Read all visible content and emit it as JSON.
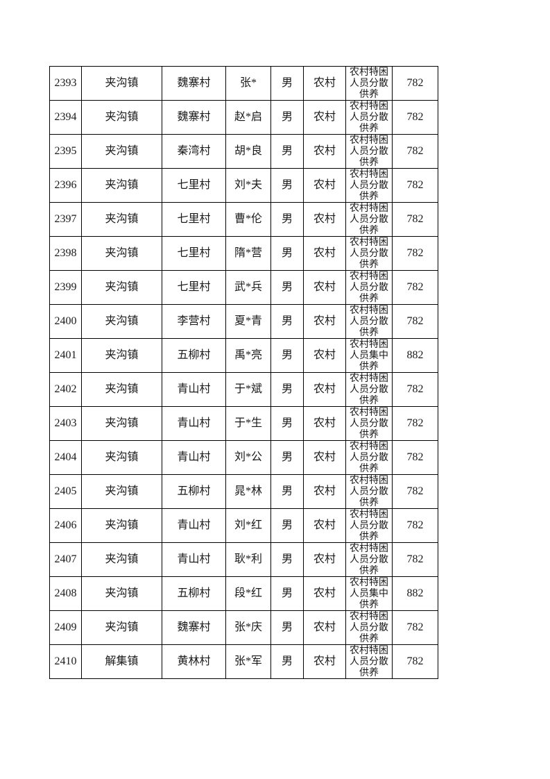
{
  "page": {
    "background_color": "#ffffff",
    "text_color": "#1a1a1a",
    "border_color": "#000000"
  },
  "table": {
    "rows": [
      {
        "no": "2393",
        "town": "夹沟镇",
        "village": "魏寨村",
        "name": "张*",
        "gender": "男",
        "hukou": "农村",
        "category": "农村特困人员分散供养",
        "amount": "782"
      },
      {
        "no": "2394",
        "town": "夹沟镇",
        "village": "魏寨村",
        "name": "赵*启",
        "gender": "男",
        "hukou": "农村",
        "category": "农村特困人员分散供养",
        "amount": "782"
      },
      {
        "no": "2395",
        "town": "夹沟镇",
        "village": "秦湾村",
        "name": "胡*良",
        "gender": "男",
        "hukou": "农村",
        "category": "农村特困人员分散供养",
        "amount": "782"
      },
      {
        "no": "2396",
        "town": "夹沟镇",
        "village": "七里村",
        "name": "刘*夫",
        "gender": "男",
        "hukou": "农村",
        "category": "农村特困人员分散供养",
        "amount": "782"
      },
      {
        "no": "2397",
        "town": "夹沟镇",
        "village": "七里村",
        "name": "曹*伦",
        "gender": "男",
        "hukou": "农村",
        "category": "农村特困人员分散供养",
        "amount": "782"
      },
      {
        "no": "2398",
        "town": "夹沟镇",
        "village": "七里村",
        "name": "隋*营",
        "gender": "男",
        "hukou": "农村",
        "category": "农村特困人员分散供养",
        "amount": "782"
      },
      {
        "no": "2399",
        "town": "夹沟镇",
        "village": "七里村",
        "name": "武*兵",
        "gender": "男",
        "hukou": "农村",
        "category": "农村特困人员分散供养",
        "amount": "782"
      },
      {
        "no": "2400",
        "town": "夹沟镇",
        "village": "李营村",
        "name": "夏*青",
        "gender": "男",
        "hukou": "农村",
        "category": "农村特困人员分散供养",
        "amount": "782"
      },
      {
        "no": "2401",
        "town": "夹沟镇",
        "village": "五柳村",
        "name": "禹*亮",
        "gender": "男",
        "hukou": "农村",
        "category": "农村特困人员集中供养",
        "amount": "882"
      },
      {
        "no": "2402",
        "town": "夹沟镇",
        "village": "青山村",
        "name": "于*斌",
        "gender": "男",
        "hukou": "农村",
        "category": "农村特困人员分散供养",
        "amount": "782"
      },
      {
        "no": "2403",
        "town": "夹沟镇",
        "village": "青山村",
        "name": "于*生",
        "gender": "男",
        "hukou": "农村",
        "category": "农村特困人员分散供养",
        "amount": "782"
      },
      {
        "no": "2404",
        "town": "夹沟镇",
        "village": "青山村",
        "name": "刘*公",
        "gender": "男",
        "hukou": "农村",
        "category": "农村特困人员分散供养",
        "amount": "782"
      },
      {
        "no": "2405",
        "town": "夹沟镇",
        "village": "五柳村",
        "name": "晁*林",
        "gender": "男",
        "hukou": "农村",
        "category": "农村特困人员分散供养",
        "amount": "782"
      },
      {
        "no": "2406",
        "town": "夹沟镇",
        "village": "青山村",
        "name": "刘*红",
        "gender": "男",
        "hukou": "农村",
        "category": "农村特困人员分散供养",
        "amount": "782"
      },
      {
        "no": "2407",
        "town": "夹沟镇",
        "village": "青山村",
        "name": "耿*利",
        "gender": "男",
        "hukou": "农村",
        "category": "农村特困人员分散供养",
        "amount": "782"
      },
      {
        "no": "2408",
        "town": "夹沟镇",
        "village": "五柳村",
        "name": "段*红",
        "gender": "男",
        "hukou": "农村",
        "category": "农村特困人员集中供养",
        "amount": "882"
      },
      {
        "no": "2409",
        "town": "夹沟镇",
        "village": "魏寨村",
        "name": "张*庆",
        "gender": "男",
        "hukou": "农村",
        "category": "农村特困人员分散供养",
        "amount": "782"
      },
      {
        "no": "2410",
        "town": "解集镇",
        "village": "黄林村",
        "name": "张*军",
        "gender": "男",
        "hukou": "农村",
        "category": "农村特困人员分散供养",
        "amount": "782"
      }
    ]
  }
}
